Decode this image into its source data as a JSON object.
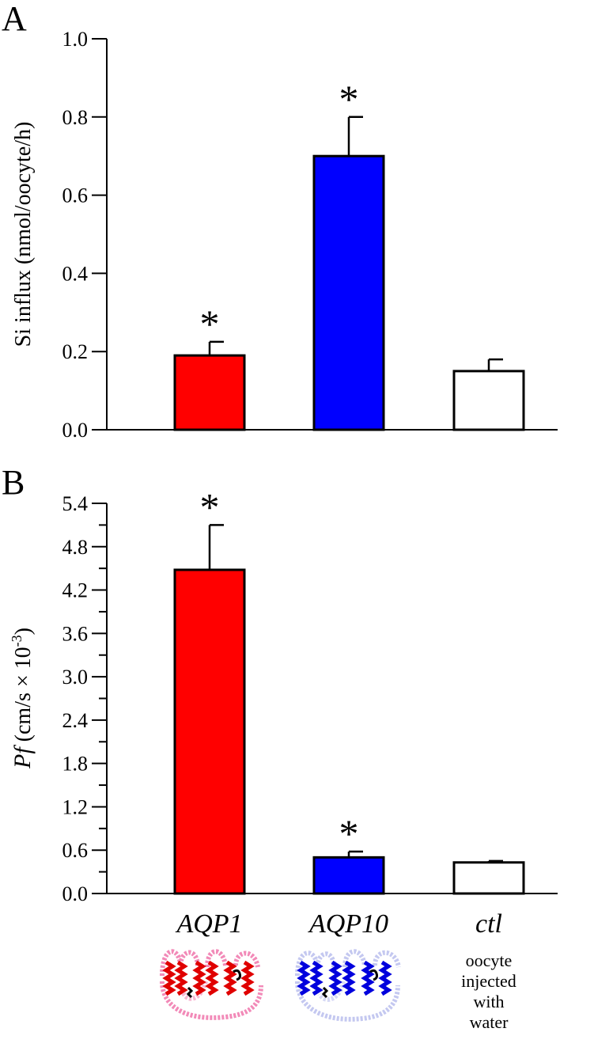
{
  "chart_data": [
    {
      "panel": "A",
      "type": "bar",
      "categories": [
        "AQP1",
        "AQP10",
        "ctl"
      ],
      "values": [
        0.19,
        0.7,
        0.15
      ],
      "errors": [
        0.035,
        0.1,
        0.03
      ],
      "significance": [
        "*",
        "*",
        ""
      ],
      "colors": [
        "#ff0000",
        "#0000ff",
        "#ffffff"
      ],
      "ylabel": "Si influx (nmol/oocyte/h)",
      "ylim": [
        0,
        1.0
      ],
      "yticks": [
        "0.0",
        "0.2",
        "0.4",
        "0.6",
        "0.8",
        "1.0"
      ],
      "grid": false
    },
    {
      "panel": "B",
      "type": "bar",
      "categories": [
        "AQP1",
        "AQP10",
        "ctl"
      ],
      "values": [
        4.48,
        0.5,
        0.43
      ],
      "errors": [
        0.62,
        0.08,
        0.02
      ],
      "significance": [
        "*",
        "*",
        ""
      ],
      "colors": [
        "#ff0000",
        "#0000ff",
        "#ffffff"
      ],
      "ylabel": {
        "italic": "Pf",
        "main": " (cm/s × 10",
        "exp": "-3",
        "close": ")"
      },
      "ylim": [
        0,
        5.4
      ],
      "yticks": [
        "0.0",
        "0.6",
        "1.2",
        "1.8",
        "2.4",
        "3.0",
        "3.6",
        "4.2",
        "4.8",
        "5.4"
      ],
      "grid": false
    }
  ],
  "category_labels": [
    "AQP1",
    "AQP10",
    "ctl"
  ],
  "ctl_note": [
    "oocyte",
    "injected",
    "with",
    "water"
  ],
  "icons": [
    "aqp1-topology-icon",
    "aqp10-topology-icon"
  ]
}
